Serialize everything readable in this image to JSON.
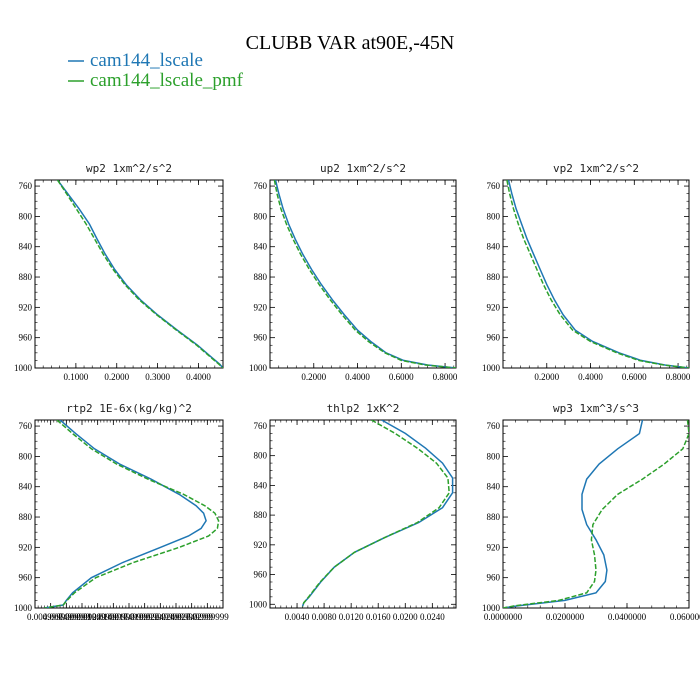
{
  "title": "CLUBB VAR at90E,-45N",
  "legend": [
    {
      "label": "cam144_lscale",
      "color": "#1f77b4"
    },
    {
      "label": "cam144_lscale_pmf",
      "color": "#2ca02c"
    }
  ],
  "chart_data": [
    {
      "type": "line",
      "title": "wp2  1xm^2/s^2",
      "xlim": [
        0.0,
        0.46
      ],
      "ylim": [
        1000,
        752
      ],
      "xticks": [
        0.1,
        0.2,
        0.3,
        0.4
      ],
      "xtick_labels": [
        "0.1000",
        "0.2000",
        "0.3000",
        "0.4000"
      ],
      "yticks": [
        760,
        800,
        840,
        880,
        920,
        960,
        1000
      ],
      "ytick_labels": [
        "760",
        "800",
        "840",
        "880",
        "920",
        "960",
        "1000"
      ],
      "y": [
        752,
        770,
        790,
        810,
        830,
        850,
        870,
        890,
        910,
        930,
        950,
        970,
        985,
        995,
        1000
      ],
      "series": [
        {
          "name": "cam144_lscale",
          "color": "#1f77b4",
          "dashed": false,
          "x": [
            0.055,
            0.08,
            0.108,
            0.133,
            0.152,
            0.172,
            0.195,
            0.223,
            0.258,
            0.3,
            0.348,
            0.398,
            0.43,
            0.452,
            0.46
          ]
        },
        {
          "name": "cam144_lscale_pmf",
          "color": "#2ca02c",
          "dashed": true,
          "x": [
            0.055,
            0.077,
            0.101,
            0.125,
            0.146,
            0.167,
            0.191,
            0.22,
            0.255,
            0.298,
            0.346,
            0.396,
            0.428,
            0.45,
            0.46
          ]
        }
      ]
    },
    {
      "type": "line",
      "title": "up2  1xm^2/s^2",
      "xlim": [
        0.0,
        0.85
      ],
      "ylim": [
        1000,
        752
      ],
      "xticks": [
        0.2,
        0.4,
        0.6,
        0.8
      ],
      "xtick_labels": [
        "0.2000",
        "0.4000",
        "0.6000",
        "0.8000"
      ],
      "yticks": [
        760,
        800,
        840,
        880,
        920,
        960,
        1000
      ],
      "ytick_labels": [
        "760",
        "800",
        "840",
        "880",
        "920",
        "960",
        "1000"
      ],
      "y": [
        752,
        770,
        790,
        810,
        830,
        850,
        870,
        890,
        910,
        930,
        950,
        965,
        980,
        990,
        996,
        1000
      ],
      "series": [
        {
          "name": "cam144_lscale",
          "color": "#1f77b4",
          "dashed": false,
          "x": [
            0.025,
            0.04,
            0.06,
            0.085,
            0.115,
            0.15,
            0.19,
            0.235,
            0.285,
            0.34,
            0.4,
            0.46,
            0.53,
            0.61,
            0.72,
            0.85
          ]
        },
        {
          "name": "cam144_lscale_pmf",
          "color": "#2ca02c",
          "dashed": true,
          "x": [
            0.02,
            0.032,
            0.05,
            0.075,
            0.105,
            0.14,
            0.18,
            0.225,
            0.275,
            0.33,
            0.39,
            0.45,
            0.525,
            0.6,
            0.71,
            0.85
          ]
        }
      ]
    },
    {
      "type": "line",
      "title": "vp2  1xm^2/s^2",
      "xlim": [
        0.0,
        0.85
      ],
      "ylim": [
        1000,
        752
      ],
      "xticks": [
        0.2,
        0.4,
        0.6,
        0.8
      ],
      "xtick_labels": [
        "0.2000",
        "0.4000",
        "0.6000",
        "0.8000"
      ],
      "yticks": [
        760,
        800,
        840,
        880,
        920,
        960,
        1000
      ],
      "ytick_labels": [
        "760",
        "800",
        "840",
        "880",
        "920",
        "960",
        "1000"
      ],
      "y": [
        752,
        770,
        790,
        810,
        830,
        850,
        870,
        890,
        910,
        930,
        950,
        965,
        980,
        990,
        996,
        1000
      ],
      "series": [
        {
          "name": "cam144_lscale",
          "color": "#1f77b4",
          "dashed": false,
          "x": [
            0.025,
            0.04,
            0.06,
            0.085,
            0.11,
            0.14,
            0.17,
            0.2,
            0.235,
            0.275,
            0.33,
            0.41,
            0.53,
            0.63,
            0.74,
            0.85
          ]
        },
        {
          "name": "cam144_lscale_pmf",
          "color": "#2ca02c",
          "dashed": true,
          "x": [
            0.018,
            0.03,
            0.048,
            0.07,
            0.095,
            0.125,
            0.155,
            0.185,
            0.22,
            0.262,
            0.318,
            0.4,
            0.52,
            0.62,
            0.735,
            0.85
          ]
        }
      ]
    },
    {
      "type": "line",
      "title": "rtp2  1E-6x(kg/kg)^2",
      "xlim": [
        0.0025,
        0.0325
      ],
      "ylim": [
        1000,
        752
      ],
      "xticks": [
        0.005,
        0.0075,
        0.01,
        0.0125,
        0.015,
        0.0175,
        0.02,
        0.0225,
        0.025,
        0.0275,
        0.03
      ],
      "xtick_labels": [
        "0.004999999",
        "0.007499999",
        "0.009999999",
        "0.01249999",
        "0.01499999",
        "0.01749999",
        "0.01999999",
        "0.02249999",
        "0.02499999",
        "0.02749999",
        "0.02999999"
      ],
      "yticks": [
        760,
        800,
        840,
        880,
        920,
        960,
        1000
      ],
      "ytick_labels": [
        "760",
        "800",
        "840",
        "880",
        "920",
        "960",
        "1000"
      ],
      "y": [
        752,
        770,
        790,
        810,
        830,
        850,
        865,
        875,
        885,
        895,
        905,
        920,
        940,
        960,
        980,
        990,
        996,
        1000
      ],
      "series": [
        {
          "name": "cam144_lscale",
          "color": "#1f77b4",
          "dashed": false,
          "x": [
            0.0065,
            0.009,
            0.012,
            0.016,
            0.021,
            0.0255,
            0.0282,
            0.0294,
            0.0298,
            0.029,
            0.027,
            0.0225,
            0.0165,
            0.0115,
            0.0085,
            0.0075,
            0.007,
            0.004
          ]
        },
        {
          "name": "cam144_lscale_pmf",
          "color": "#2ca02c",
          "dashed": true,
          "x": [
            0.006,
            0.0085,
            0.0115,
            0.0155,
            0.0205,
            0.0262,
            0.0296,
            0.0312,
            0.0318,
            0.0316,
            0.0302,
            0.0255,
            0.0182,
            0.0122,
            0.0088,
            0.0076,
            0.007,
            0.004
          ]
        }
      ]
    },
    {
      "type": "line",
      "title": "thlp2  1xK^2",
      "xlim": [
        0.0,
        0.0275
      ],
      "ylim": [
        1005,
        752
      ],
      "xticks": [
        0.004,
        0.008,
        0.012,
        0.016,
        0.02,
        0.024
      ],
      "xtick_labels": [
        "0.0040",
        "0.0080",
        "0.0120",
        "0.0160",
        "0.0200",
        "0.0240"
      ],
      "yticks": [
        760,
        800,
        840,
        880,
        920,
        960,
        1000
      ],
      "ytick_labels": [
        "760",
        "800",
        "840",
        "880",
        "920",
        "960",
        "1000"
      ],
      "y": [
        752,
        770,
        790,
        810,
        830,
        850,
        870,
        890,
        910,
        930,
        950,
        970,
        990,
        998,
        1003
      ],
      "series": [
        {
          "name": "cam144_lscale",
          "color": "#1f77b4",
          "dashed": false,
          "x": [
            0.0165,
            0.02,
            0.023,
            0.0255,
            0.027,
            0.027,
            0.0255,
            0.022,
            0.017,
            0.0125,
            0.0095,
            0.0075,
            0.0058,
            0.005,
            0.0048
          ]
        },
        {
          "name": "cam144_lscale_pmf",
          "color": "#2ca02c",
          "dashed": true,
          "x": [
            0.015,
            0.0185,
            0.0218,
            0.0246,
            0.0263,
            0.0265,
            0.025,
            0.0218,
            0.017,
            0.0125,
            0.0095,
            0.0074,
            0.0057,
            0.005,
            0.0048
          ]
        }
      ]
    },
    {
      "type": "line",
      "title": "wp3  1xm^3/s^3",
      "xlim": [
        0.0,
        0.06
      ],
      "ylim": [
        1000,
        752
      ],
      "xticks": [
        0.0,
        0.02,
        0.04,
        0.06
      ],
      "xtick_labels": [
        "0.0000000",
        "0.0200000",
        "0.0400000",
        "0.0600000"
      ],
      "yticks": [
        760,
        800,
        840,
        880,
        920,
        960,
        1000
      ],
      "ytick_labels": [
        "760",
        "800",
        "840",
        "880",
        "920",
        "960",
        "1000"
      ],
      "y": [
        752,
        770,
        790,
        810,
        830,
        850,
        870,
        890,
        910,
        930,
        950,
        965,
        980,
        990,
        997,
        1000
      ],
      "series": [
        {
          "name": "cam144_lscale",
          "color": "#1f77b4",
          "dashed": false,
          "x": [
            0.045,
            0.044,
            0.037,
            0.031,
            0.027,
            0.0255,
            0.0255,
            0.027,
            0.03,
            0.0325,
            0.0335,
            0.033,
            0.03,
            0.02,
            0.005,
            0.0
          ]
        },
        {
          "name": "cam144_lscale_pmf",
          "color": "#2ca02c",
          "dashed": true,
          "x": [
            0.0595,
            0.06,
            0.058,
            0.052,
            0.045,
            0.037,
            0.032,
            0.029,
            0.0285,
            0.0295,
            0.03,
            0.0295,
            0.027,
            0.018,
            0.004,
            0.0
          ]
        }
      ]
    }
  ]
}
